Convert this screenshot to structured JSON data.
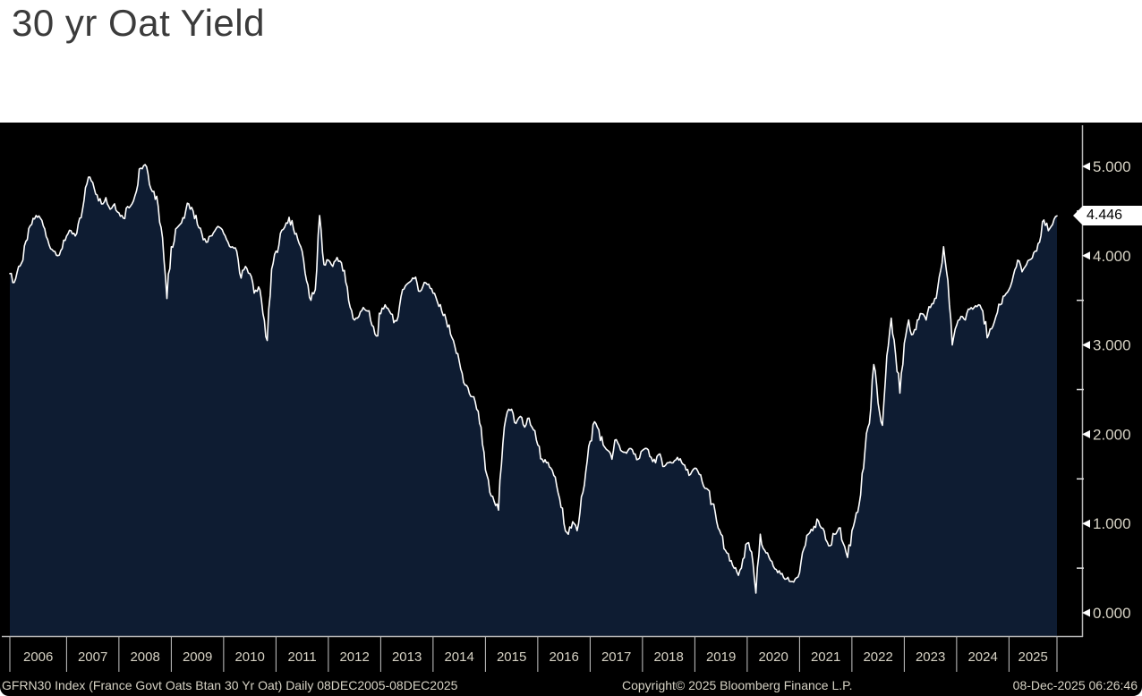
{
  "page": {
    "title": "30 yr Oat Yield"
  },
  "chart_data": {
    "type": "area",
    "title": "30 yr Oat Yield",
    "security_line": "GFRN30 Index (France Govt Oats Btan 30 Yr Oat) Daily 08DEC2005-08DEC2025",
    "copyright": "Copyright© 2025 Bloomberg Finance L.P.",
    "timestamp": "08-Dec-2025 06:26:46",
    "last_price": "4.446",
    "last_price_value": 4.446,
    "x_range": "08DEC2005-08DEC2025",
    "x_start_year": 2005.94,
    "x_end_year": 2025.94,
    "ylim": [
      -0.26,
      5.46
    ],
    "legend_position": "none",
    "grid": false,
    "y_axis": {
      "labels": [
        "5.000",
        "4.000",
        "3.000",
        "2.000",
        "1.000",
        "0.000"
      ],
      "values": [
        5,
        4,
        3,
        2,
        1,
        0
      ],
      "minor_values": [
        4.5,
        3.5,
        2.5,
        1.5,
        0.5
      ]
    },
    "x_axis": {
      "tick_years": [
        "2006",
        "2007",
        "2008",
        "2009",
        "2010",
        "2011",
        "2012",
        "2013",
        "2014",
        "2015",
        "2016",
        "2017",
        "2018",
        "2019",
        "2020",
        "2021",
        "2022",
        "2023",
        "2024",
        "2025"
      ]
    },
    "series": [
      {
        "name": "GFRN30 Index",
        "start": "Dec 2005",
        "interval": "monthly",
        "monthly_values": [
          3.8,
          3.7,
          3.88,
          3.95,
          4.18,
          4.35,
          4.45,
          4.42,
          4.3,
          4.12,
          4.05,
          4.0,
          4.08,
          4.22,
          4.28,
          4.22,
          4.42,
          4.62,
          4.88,
          4.82,
          4.68,
          4.58,
          4.65,
          4.52,
          4.58,
          4.48,
          4.42,
          4.55,
          4.58,
          4.72,
          4.98,
          5.02,
          4.8,
          4.72,
          4.55,
          4.2,
          3.52,
          4.1,
          4.3,
          4.35,
          4.42,
          4.58,
          4.5,
          4.35,
          4.25,
          4.15,
          4.22,
          4.28,
          4.32,
          4.25,
          4.15,
          4.1,
          4.05,
          3.75,
          3.88,
          3.8,
          3.58,
          3.65,
          3.35,
          3.05,
          3.85,
          4.05,
          4.25,
          4.32,
          4.43,
          4.3,
          4.18,
          4.05,
          3.72,
          3.5,
          3.62,
          4.45,
          3.9,
          3.95,
          3.88,
          3.98,
          3.92,
          3.7,
          3.42,
          3.28,
          3.32,
          3.42,
          3.38,
          3.22,
          3.1,
          3.35,
          3.45,
          3.38,
          3.25,
          3.32,
          3.62,
          3.68,
          3.72,
          3.76,
          3.6,
          3.7,
          3.68,
          3.58,
          3.48,
          3.38,
          3.28,
          3.12,
          2.98,
          2.82,
          2.58,
          2.52,
          2.42,
          2.28,
          2.08,
          1.6,
          1.35,
          1.25,
          1.15,
          1.9,
          2.25,
          2.28,
          2.12,
          2.2,
          2.08,
          2.18,
          2.05,
          1.88,
          1.72,
          1.68,
          1.62,
          1.52,
          1.28,
          1.0,
          0.88,
          1.02,
          0.92,
          1.3,
          1.58,
          1.92,
          2.14,
          2.05,
          1.88,
          1.82,
          1.72,
          1.94,
          1.82,
          1.8,
          1.84,
          1.78,
          1.72,
          1.82,
          1.84,
          1.74,
          1.68,
          1.78,
          1.64,
          1.68,
          1.68,
          1.74,
          1.68,
          1.6,
          1.55,
          1.62,
          1.55,
          1.42,
          1.38,
          1.22,
          1.02,
          0.88,
          0.7,
          0.58,
          0.5,
          0.42,
          0.6,
          0.78,
          0.68,
          0.22,
          0.88,
          0.7,
          0.62,
          0.52,
          0.45,
          0.44,
          0.38,
          0.35,
          0.38,
          0.45,
          0.72,
          0.88,
          0.92,
          1.05,
          0.95,
          0.82,
          0.75,
          0.88,
          0.95,
          0.78,
          0.62,
          0.92,
          1.12,
          1.32,
          1.82,
          2.12,
          2.78,
          2.35,
          2.1,
          2.88,
          3.3,
          2.9,
          2.46,
          3.02,
          3.28,
          3.12,
          3.28,
          3.35,
          3.28,
          3.42,
          3.52,
          3.76,
          4.1,
          3.72,
          3.0,
          3.22,
          3.32,
          3.28,
          3.4,
          3.42,
          3.45,
          3.38,
          3.08,
          3.18,
          3.32,
          3.45,
          3.55,
          3.62,
          3.78,
          3.95,
          3.82,
          3.9,
          3.96,
          4.05,
          4.15,
          4.4,
          4.28,
          4.35,
          4.446
        ]
      }
    ],
    "colors": {
      "background": "#000000",
      "area_fill": "#0e1c32",
      "line": "#ffffff",
      "axis": "#b4b4b4",
      "tick": "#c8c8c8",
      "label": "#d6d2c4",
      "price_box_bg": "#ffffff",
      "price_box_text": "#000000",
      "title_color": "#3b3b3b"
    }
  }
}
